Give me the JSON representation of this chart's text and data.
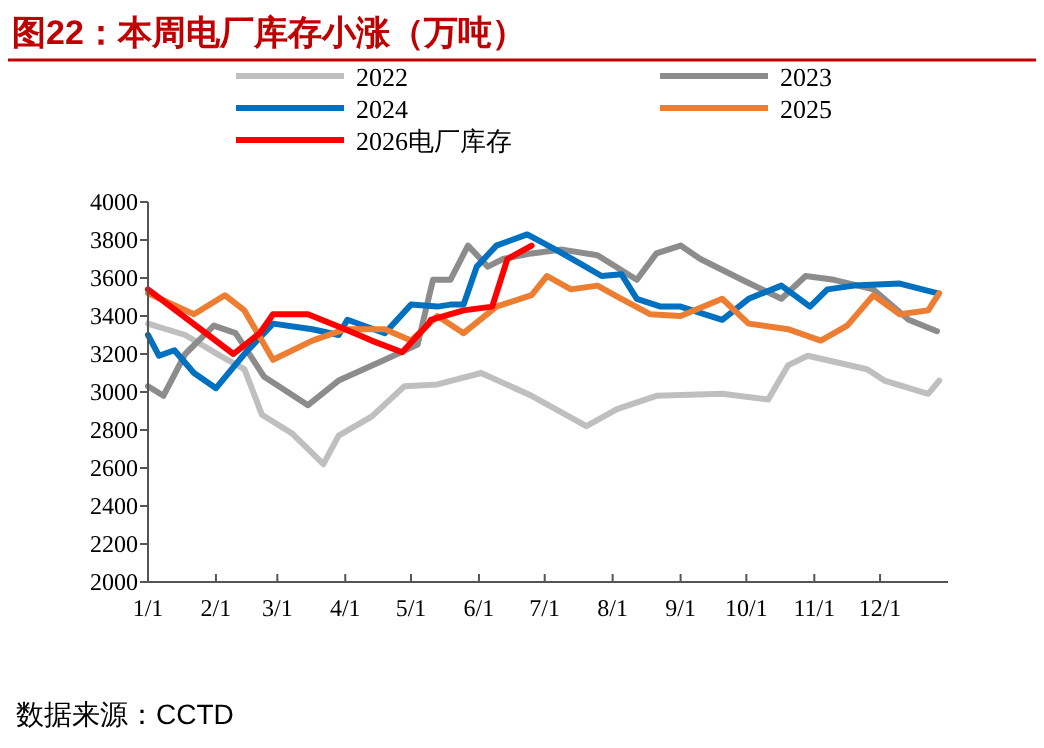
{
  "chart_data": {
    "type": "line",
    "title": "图22：本周电厂库存小涨（万吨）",
    "annotations": [
      "数据来源：CCTD"
    ],
    "xlim": [
      "--01-01",
      "--12-31"
    ],
    "xticks": [
      {
        "value": "--01-01",
        "label": "1/1"
      },
      {
        "value": "--02-01",
        "label": "2/1"
      },
      {
        "value": "--03-01",
        "label": "3/1"
      },
      {
        "value": "--04-01",
        "label": "4/1"
      },
      {
        "value": "--05-01",
        "label": "5/1"
      },
      {
        "value": "--06-01",
        "label": "6/1"
      },
      {
        "value": "--07-01",
        "label": "7/1"
      },
      {
        "value": "--08-01",
        "label": "8/1"
      },
      {
        "value": "--09-01",
        "label": "9/1"
      },
      {
        "value": "--10-01",
        "label": "10/1"
      },
      {
        "value": "--11-01",
        "label": "11/1"
      },
      {
        "value": "--12-01",
        "label": "12/1"
      }
    ],
    "ylim": [
      2000,
      4000
    ],
    "yticks": [
      2000,
      2200,
      2400,
      2600,
      2800,
      3000,
      3200,
      3400,
      3600,
      3800,
      4000
    ],
    "legend": "top",
    "series": [
      {
        "name": "2022",
        "color": "#bfbfbf",
        "x": [
          "--01-01",
          "--01-18",
          "--02-03",
          "--02-14",
          "--02-22",
          "--03-08",
          "--03-22",
          "--03-29",
          "--04-13",
          "--04-28",
          "--05-13",
          "--06-02",
          "--06-25",
          "--07-20",
          "--08-03",
          "--08-21",
          "--09-20",
          "--10-11",
          "--10-20",
          "--10-29",
          "--11-25",
          "--12-03",
          "--12-23",
          "--12-28"
        ],
        "values": [
          3360,
          3300,
          3190,
          3120,
          2880,
          2780,
          2620,
          2770,
          2870,
          3030,
          3040,
          3100,
          2980,
          2820,
          2910,
          2980,
          2990,
          2960,
          3140,
          3190,
          3120,
          3060,
          2990,
          3060
        ]
      },
      {
        "name": "2023",
        "color": "#8c8c8c",
        "x": [
          "--01-01",
          "--01-08",
          "--01-18",
          "--01-31",
          "--02-10",
          "--02-23",
          "--03-15",
          "--03-29",
          "--04-19",
          "--05-04",
          "--05-11",
          "--05-19",
          "--05-27",
          "--06-05",
          "--06-12",
          "--06-25",
          "--07-09",
          "--07-25",
          "--08-12",
          "--08-21",
          "--09-01",
          "--09-10",
          "--09-29",
          "--10-17",
          "--10-28",
          "--11-10",
          "--11-28",
          "--12-14",
          "--12-27"
        ],
        "values": [
          3030,
          2980,
          3200,
          3350,
          3310,
          3080,
          2930,
          3060,
          3170,
          3250,
          3590,
          3590,
          3770,
          3660,
          3700,
          3730,
          3750,
          3720,
          3590,
          3730,
          3770,
          3700,
          3590,
          3490,
          3610,
          3590,
          3540,
          3380,
          3320
        ]
      },
      {
        "name": "2024",
        "color": "#0070c0",
        "x": [
          "--01-01",
          "--01-06",
          "--01-13",
          "--01-22",
          "--02-01",
          "--02-14",
          "--02-27",
          "--03-17",
          "--03-29",
          "--04-02",
          "--04-19",
          "--05-01",
          "--05-13",
          "--05-19",
          "--05-25",
          "--05-31",
          "--06-09",
          "--06-23",
          "--07-06",
          "--07-18",
          "--07-27",
          "--08-05",
          "--08-12",
          "--08-23",
          "--09-01",
          "--09-20",
          "--10-02",
          "--10-17",
          "--10-30",
          "--11-07",
          "--11-19",
          "--12-10",
          "--12-27"
        ],
        "values": [
          3300,
          3190,
          3220,
          3100,
          3020,
          3200,
          3360,
          3330,
          3300,
          3380,
          3310,
          3460,
          3450,
          3460,
          3460,
          3660,
          3770,
          3830,
          3750,
          3670,
          3610,
          3620,
          3490,
          3450,
          3450,
          3380,
          3490,
          3560,
          3450,
          3540,
          3560,
          3570,
          3520
        ]
      },
      {
        "name": "2025",
        "color": "#ed7d31",
        "x": [
          "--01-01",
          "--01-22",
          "--02-05",
          "--02-14",
          "--02-27",
          "--03-17",
          "--04-01",
          "--04-19",
          "--05-01",
          "--05-13",
          "--05-25",
          "--06-09",
          "--06-25",
          "--07-02",
          "--07-13",
          "--07-25",
          "--08-05",
          "--08-18",
          "--09-01",
          "--09-20",
          "--10-02",
          "--10-20",
          "--11-04",
          "--11-16",
          "--11-28",
          "--12-10",
          "--12-23",
          "--12-28"
        ],
        "values": [
          3520,
          3410,
          3510,
          3430,
          3170,
          3270,
          3330,
          3330,
          3270,
          3400,
          3310,
          3450,
          3510,
          3610,
          3540,
          3560,
          3490,
          3410,
          3400,
          3490,
          3360,
          3330,
          3270,
          3350,
          3510,
          3410,
          3430,
          3520
        ]
      },
      {
        "name": "2026电厂库存",
        "color": "#ff0000",
        "x": [
          "--01-01",
          "--02-09",
          "--02-21",
          "--02-27",
          "--03-15",
          "--04-01",
          "--04-13",
          "--04-27",
          "--05-09",
          "--05-10",
          "--05-25",
          "--06-07",
          "--06-14",
          "--06-25"
        ],
        "values": [
          3540,
          3200,
          3310,
          3410,
          3410,
          3330,
          3270,
          3210,
          3360,
          3380,
          3430,
          3450,
          3700,
          3770
        ]
      }
    ]
  }
}
